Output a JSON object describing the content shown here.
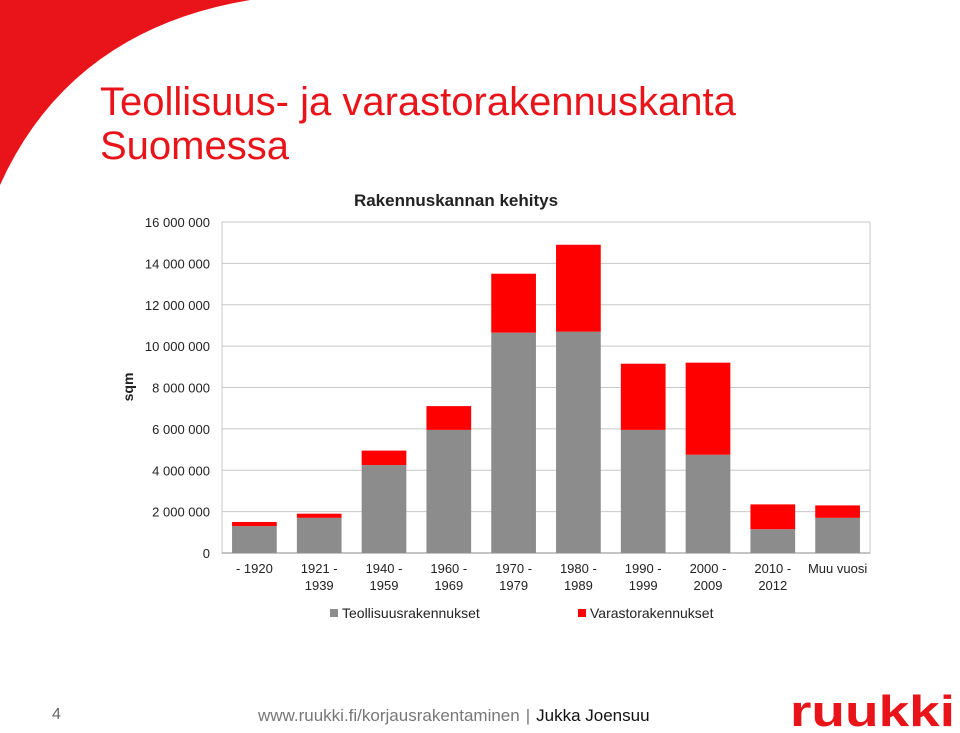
{
  "slide": {
    "title_line1": "Teollisuus- ja varastorakennuskanta",
    "title_line2": "Suomessa",
    "page_number": "4",
    "footer_url": "www.ruukki.fi/korjausrakentaminen",
    "footer_separator": "|",
    "footer_author": "Jukka Joensuu",
    "logo_text": "ruukki"
  },
  "colors": {
    "brand_red": "#e8141a",
    "industrial": "#8c8c8c",
    "warehouse": "#ff0000"
  },
  "chart_data": {
    "type": "bar",
    "stacked": true,
    "title": "Rakennuskannan kehitys",
    "ylabel": "sqm",
    "xlabel": "",
    "ylim": [
      0,
      16000000
    ],
    "yticks": [
      {
        "value": 0,
        "label": "0"
      },
      {
        "value": 2000000,
        "label": "2 000 000"
      },
      {
        "value": 4000000,
        "label": "4 000 000"
      },
      {
        "value": 6000000,
        "label": "6 000 000"
      },
      {
        "value": 8000000,
        "label": "8 000 000"
      },
      {
        "value": 10000000,
        "label": "10 000 000"
      },
      {
        "value": 12000000,
        "label": "12 000 000"
      },
      {
        "value": 14000000,
        "label": "14 000 000"
      },
      {
        "value": 16000000,
        "label": "16 000 000"
      }
    ],
    "categories": [
      [
        "- 1920"
      ],
      [
        "1921 -",
        "1939"
      ],
      [
        "1940 -",
        "1959"
      ],
      [
        "1960 -",
        "1969"
      ],
      [
        "1970 -",
        "1979"
      ],
      [
        "1980 -",
        "1989"
      ],
      [
        "1990 -",
        "1999"
      ],
      [
        "2000 -",
        "2009"
      ],
      [
        "2010 -",
        "2012"
      ],
      [
        "Muu vuosi"
      ]
    ],
    "series": [
      {
        "name": "Teollisuusrakennukset",
        "color": "#8c8c8c",
        "values": [
          1300000,
          1700000,
          4250000,
          5950000,
          10650000,
          10700000,
          5950000,
          4750000,
          1150000,
          1700000
        ]
      },
      {
        "name": "Varastorakennukset",
        "color": "#ff0000",
        "values": [
          200000,
          200000,
          700000,
          1150000,
          2850000,
          4200000,
          3200000,
          4450000,
          1200000,
          600000
        ]
      }
    ],
    "grid": true,
    "legend": "bottom"
  }
}
